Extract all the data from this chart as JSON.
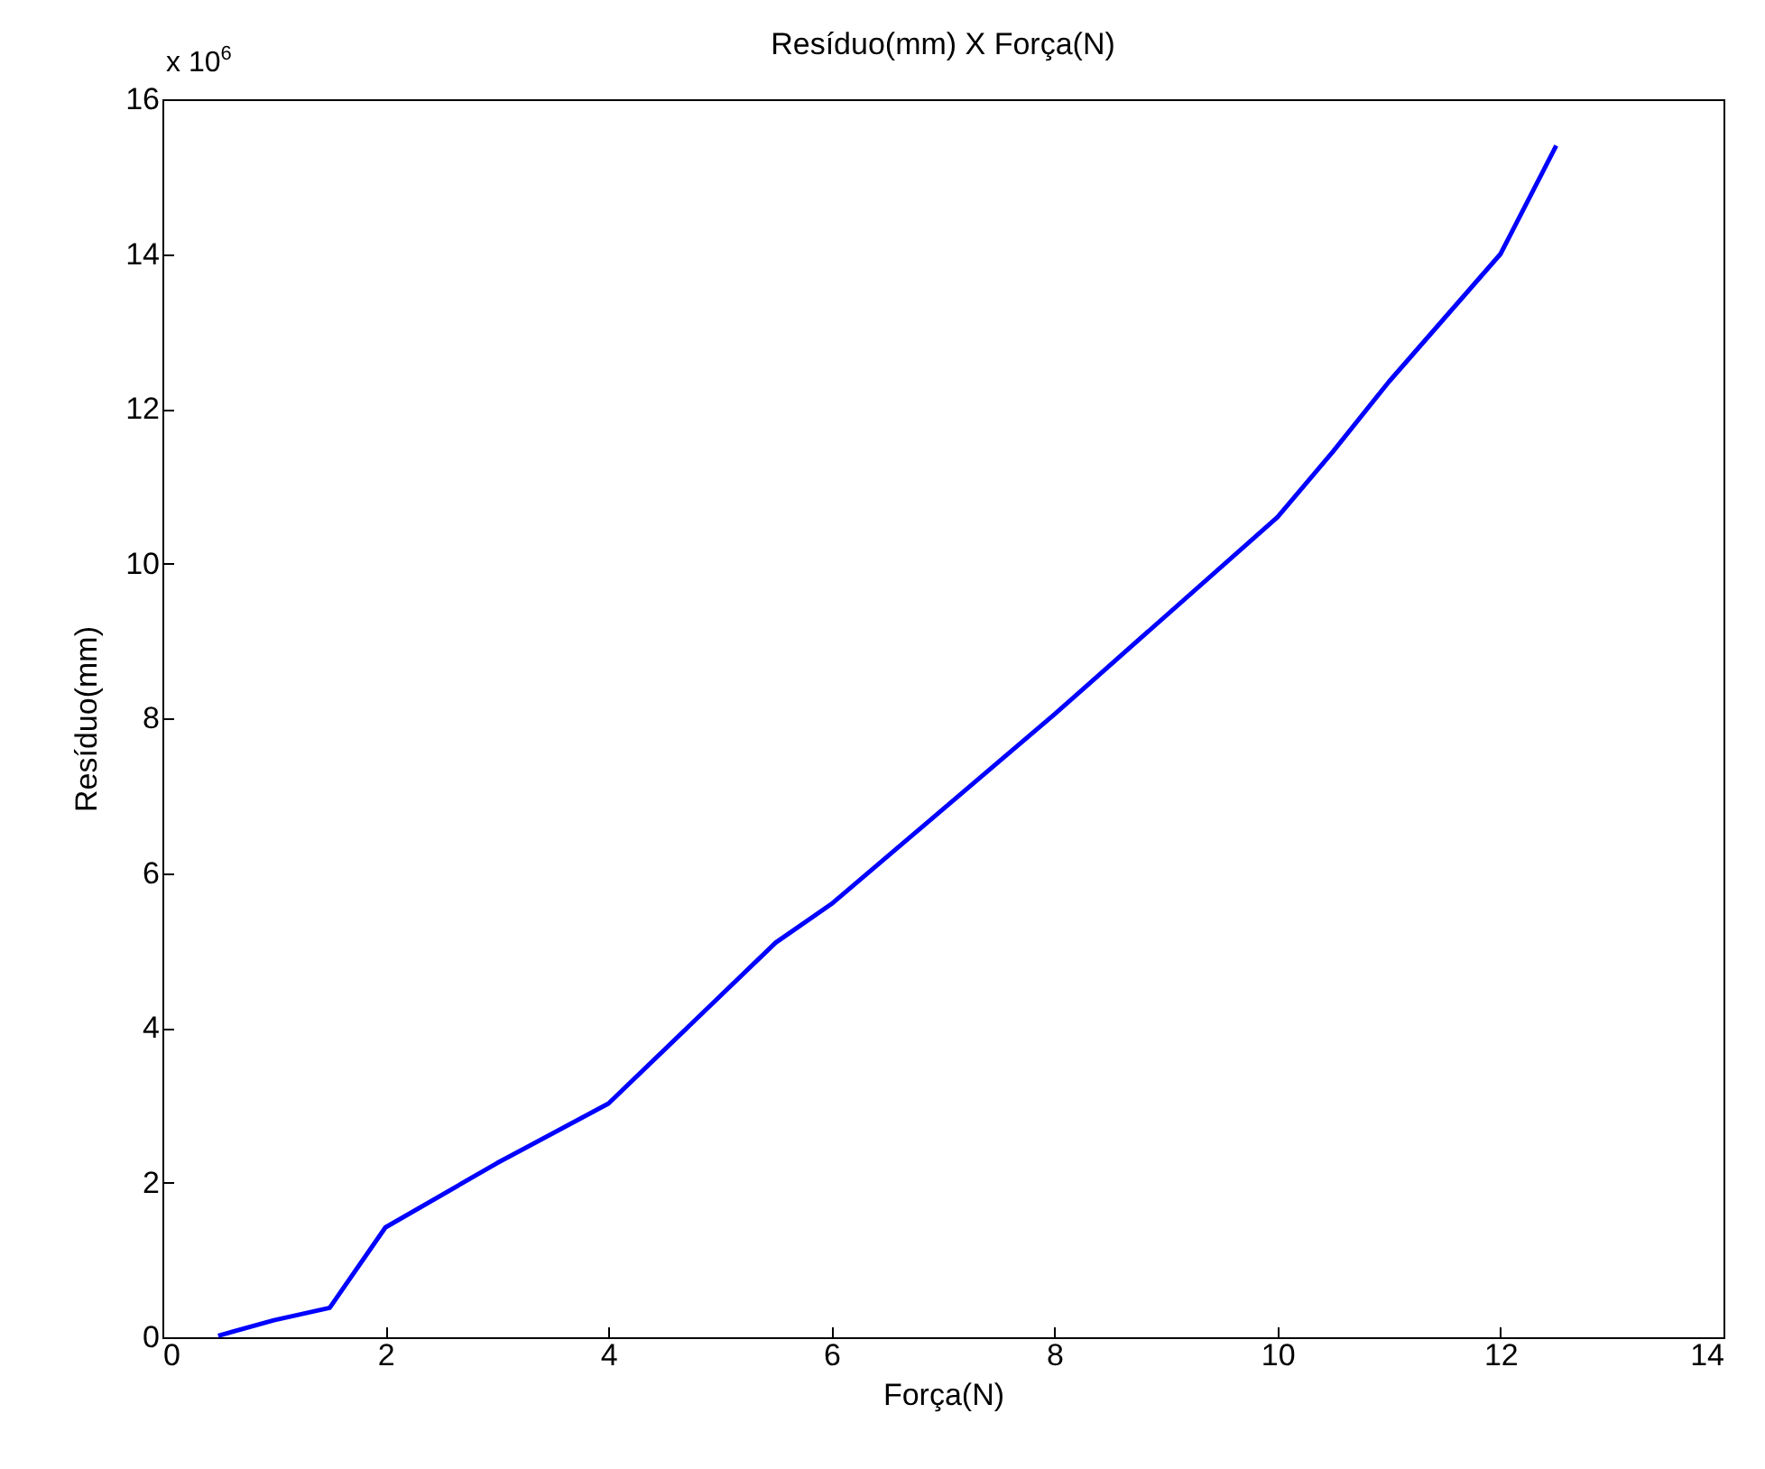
{
  "chart_data": {
    "type": "line",
    "title": "Resíduo(mm) X Força(N)",
    "xlabel": "Força(N)",
    "ylabel": "Resíduo(mm)",
    "annotations": [
      "x 10$^{6}$"
    ],
    "x": [
      0.5,
      1.0,
      1.5,
      2.0,
      3.0,
      4.0,
      5.5,
      6.0,
      8.0,
      10.0,
      10.5,
      11.0,
      12.0,
      12.5
    ],
    "series": [
      {
        "color": "#0000ff",
        "values": [
          0.02,
          0.22,
          0.38,
          1.42,
          2.25,
          3.02,
          5.1,
          5.6,
          8.05,
          10.6,
          11.45,
          12.35,
          14.0,
          15.4
        ]
      }
    ],
    "xlim": [
      0,
      14
    ],
    "xticks": [
      0,
      2,
      4,
      6,
      8,
      10,
      12,
      14
    ],
    "ylim": [
      0,
      16
    ],
    "yticks": [
      0,
      2,
      4,
      6,
      8,
      10,
      12,
      14,
      16
    ],
    "grid": false,
    "legend": false,
    "marker": "none",
    "line_style": "solid"
  }
}
